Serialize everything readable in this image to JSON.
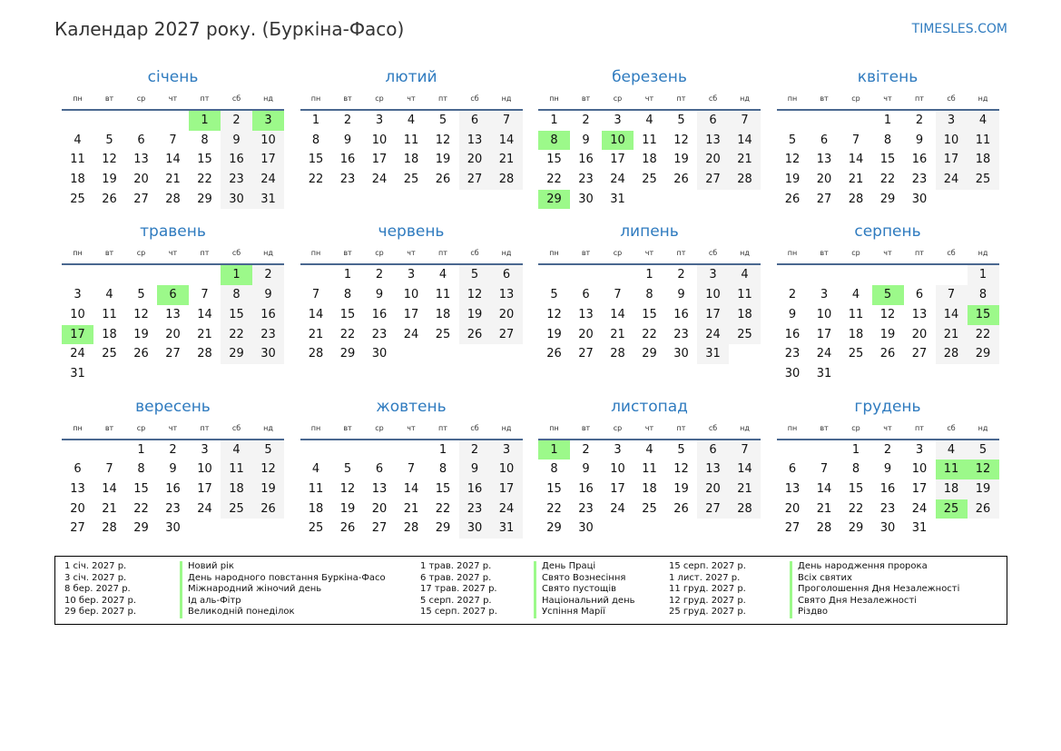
{
  "title": "Календар 2027 року. (Буркіна-Фасо)",
  "site": "TIMESLES.COM",
  "year": 2027,
  "colors": {
    "accent": "#2f7bbf",
    "holiday": "#9cf98a",
    "weekend": "#f4f4f4",
    "rule": "#4a6890"
  },
  "weekdays": [
    "пн",
    "вт",
    "ср",
    "чт",
    "пт",
    "сб",
    "нд"
  ],
  "months": [
    {
      "name": "січень",
      "holidays": [
        1,
        3
      ]
    },
    {
      "name": "лютий",
      "holidays": []
    },
    {
      "name": "березень",
      "holidays": [
        8,
        10,
        29
      ]
    },
    {
      "name": "квітень",
      "holidays": []
    },
    {
      "name": "травень",
      "holidays": [
        1,
        6,
        17
      ]
    },
    {
      "name": "червень",
      "holidays": []
    },
    {
      "name": "липень",
      "holidays": []
    },
    {
      "name": "серпень",
      "holidays": [
        5,
        15
      ]
    },
    {
      "name": "вересень",
      "holidays": []
    },
    {
      "name": "жовтень",
      "holidays": []
    },
    {
      "name": "листопад",
      "holidays": [
        1
      ]
    },
    {
      "name": "грудень",
      "holidays": [
        11,
        12,
        25
      ]
    }
  ],
  "legend": [
    {
      "date": "1 січ. 2027 р.",
      "name": "Новий рік"
    },
    {
      "date": "3 січ. 2027 р.",
      "name": "День народного повстання Буркіна-Фасо"
    },
    {
      "date": "8 бер. 2027 р.",
      "name": "Міжнародний жіночий день"
    },
    {
      "date": "10 бер. 2027 р.",
      "name": "Ід аль-Фітр"
    },
    {
      "date": "29 бер. 2027 р.",
      "name": "Великодній понеділок"
    },
    {
      "date": "1 трав. 2027 р.",
      "name": "День Праці"
    },
    {
      "date": "6 трав. 2027 р.",
      "name": "Свято Вознесіння"
    },
    {
      "date": "17 трав. 2027 р.",
      "name": "Свято пустощів"
    },
    {
      "date": "5 серп. 2027 р.",
      "name": "Національний день"
    },
    {
      "date": "15 серп. 2027 р.",
      "name": "Успіння Марії"
    },
    {
      "date": "15 серп. 2027 р.",
      "name": "День народження пророка"
    },
    {
      "date": "1 лист. 2027 р.",
      "name": "Всіх святих"
    },
    {
      "date": "11 груд. 2027 р.",
      "name": "Проголошення Дня Незалежності"
    },
    {
      "date": "12 груд. 2027 р.",
      "name": "Свято Дня Незалежності"
    },
    {
      "date": "25 груд. 2027 р.",
      "name": "Різдво"
    }
  ]
}
